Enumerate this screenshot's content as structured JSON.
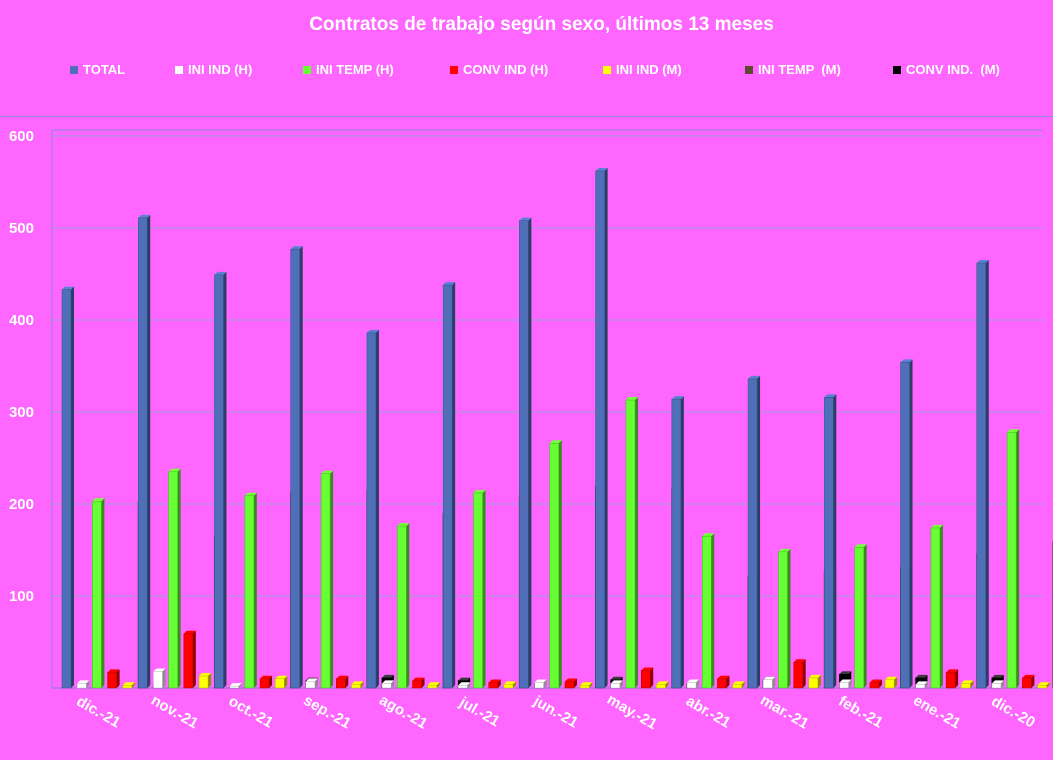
{
  "chart_data": {
    "type": "bar",
    "title": "Contratos de trabajo según sexo, últimos 13 meses",
    "xlabel": "",
    "ylabel": "",
    "ylim": [
      0,
      600
    ],
    "yticks": [
      "600",
      "500",
      "400",
      "300",
      "200",
      "100"
    ],
    "grid": true,
    "legend_position": "top",
    "categories": [
      "dic.-21",
      "nov.-21",
      "oct.-21",
      "sep.-21",
      "ago.-21",
      "jul.-21",
      "jun.-21",
      "may.-21",
      "abr.-21",
      "mar.-21",
      "feb.-21",
      "ene.-21",
      "dic.-20"
    ],
    "series": [
      {
        "name": "TOTAL",
        "color": "#4F6FB8",
        "values": [
          433,
          511,
          449,
          477,
          386,
          438,
          508,
          562,
          314,
          336,
          316,
          354,
          462
        ]
      },
      {
        "name": "INI IND (H)",
        "color": "#FFFFFF",
        "values": [
          5,
          18,
          2,
          7,
          5,
          3,
          6,
          5,
          6,
          9,
          6,
          4,
          5
        ]
      },
      {
        "name": "INI TEMP (H)",
        "color": "#66FF33",
        "values": [
          203,
          235,
          209,
          233,
          176,
          212,
          266,
          313,
          165,
          148,
          153,
          174,
          278
        ]
      },
      {
        "name": "CONV IND (H)",
        "color": "#FF0000",
        "values": [
          17,
          59,
          10,
          10,
          8,
          6,
          7,
          19,
          10,
          28,
          6,
          17,
          11
        ]
      },
      {
        "name": "INI IND (M)",
        "color": "#FFFF00",
        "values": [
          3,
          13,
          10,
          4,
          3,
          4,
          3,
          4,
          4,
          11,
          9,
          5,
          3
        ]
      },
      {
        "name": "INI TEMP  (M)",
        "color": "#5C4A2E",
        "values": [
          203,
          165,
          213,
          215,
          190,
          209,
          219,
          217,
          122,
          127,
          131,
          146,
          159
        ]
      },
      {
        "name": "CONV IND.  (M)",
        "color": "#000000",
        "values": [
          3,
          1,
          8,
          11,
          8,
          5,
          9,
          5,
          9,
          15,
          11,
          11,
          8
        ]
      }
    ]
  }
}
